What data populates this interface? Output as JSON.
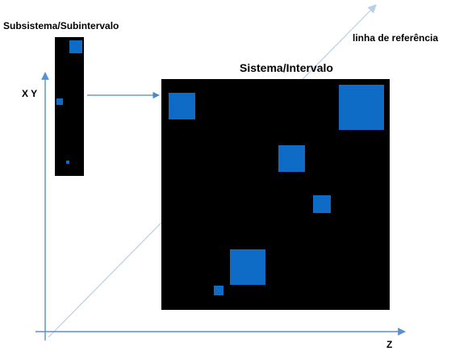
{
  "labels": {
    "subsystem_title": "Subsistema/Subintervalo",
    "system_title": "Sistema/Intervalo",
    "reference_line": "linha de referência",
    "vertical_axis": "X Y",
    "horizontal_axis": "Z"
  },
  "colors": {
    "panel": "#000000",
    "square": "#0f6cc6",
    "axis": "#5b8fd0",
    "reference_line": "#b8cfe8",
    "connector_arrow": "#4f86c9"
  }
}
